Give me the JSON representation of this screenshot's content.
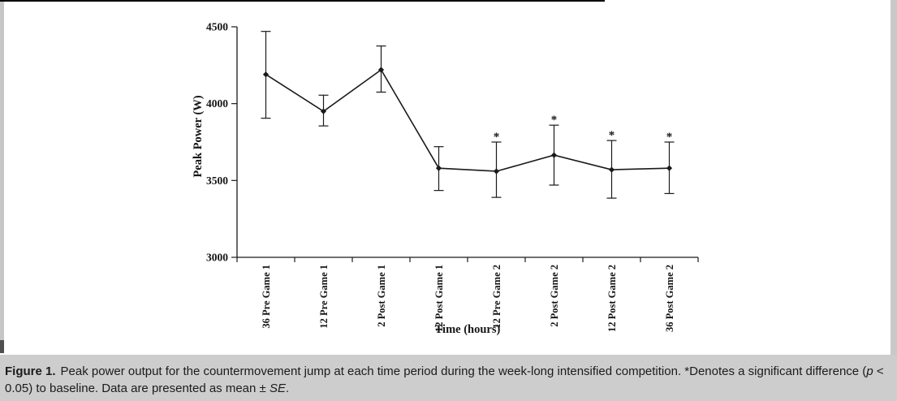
{
  "figure": {
    "caption": {
      "label_bold": "Figure 1.",
      "text_1": "Peak power output for the countermovement jump at each time period during the week-long intensified competition. *Denotes a significant difference (",
      "p_italic": "p",
      "text_2": " < 0.05) to baseline. Data are presented as mean ± ",
      "se_italic": "SE",
      "text_3": "."
    }
  },
  "chart_data": {
    "type": "line",
    "title": "",
    "xlabel": "Time (hours)",
    "ylabel": "Peak Power (W)",
    "ylim": [
      3000,
      4500
    ],
    "yticks": [
      3000,
      3500,
      4000,
      4500
    ],
    "grid": false,
    "legend_position": "none",
    "marker": "diamond",
    "error_bars": "SE",
    "significance_marker": "*",
    "categories": [
      "36 Pre Game 1",
      "12 Pre Game 1",
      "2 Post Game 1",
      "12 Post Game 1",
      "12 Pre Game 2",
      "2 Post Game 2",
      "12 Post Game 2",
      "36 Post Game 2"
    ],
    "values": [
      4190,
      3950,
      4220,
      3580,
      3560,
      3665,
      3570,
      3580
    ],
    "upper": [
      4470,
      4055,
      4375,
      3720,
      3750,
      3860,
      3760,
      3750
    ],
    "lower": [
      3905,
      3855,
      4075,
      3435,
      3390,
      3470,
      3385,
      3415
    ],
    "significant": [
      false,
      false,
      false,
      false,
      true,
      true,
      true,
      true
    ]
  },
  "colors": {
    "ink": "#1a1a1a",
    "caption_bg": "#cdcdcd",
    "edge_strip": "#c9c9c9",
    "top_rule": "#000000",
    "chart_bg": "#ffffff"
  }
}
